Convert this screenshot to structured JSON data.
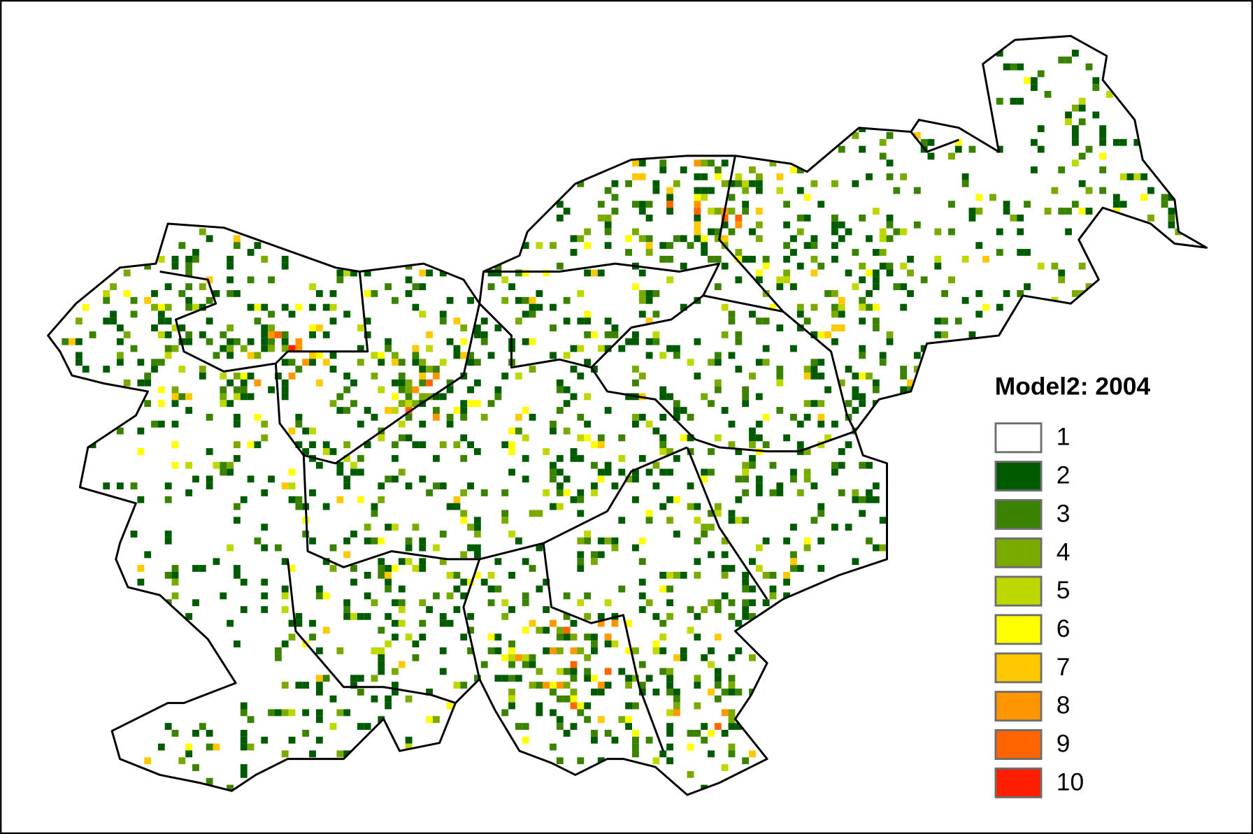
{
  "legend": {
    "title": "Model2: 2004",
    "items": [
      {
        "label": 1,
        "color": "#ffffff"
      },
      {
        "label": 2,
        "color": "#005a00"
      },
      {
        "label": 3,
        "color": "#3a8200"
      },
      {
        "label": 4,
        "color": "#78aa00"
      },
      {
        "label": 5,
        "color": "#bcd800"
      },
      {
        "label": 6,
        "color": "#ffff00"
      },
      {
        "label": 7,
        "color": "#ffc800"
      },
      {
        "label": 8,
        "color": "#ff9600"
      },
      {
        "label": 9,
        "color": "#ff6400"
      },
      {
        "label": 10,
        "color": "#ff1e00"
      }
    ]
  }
}
